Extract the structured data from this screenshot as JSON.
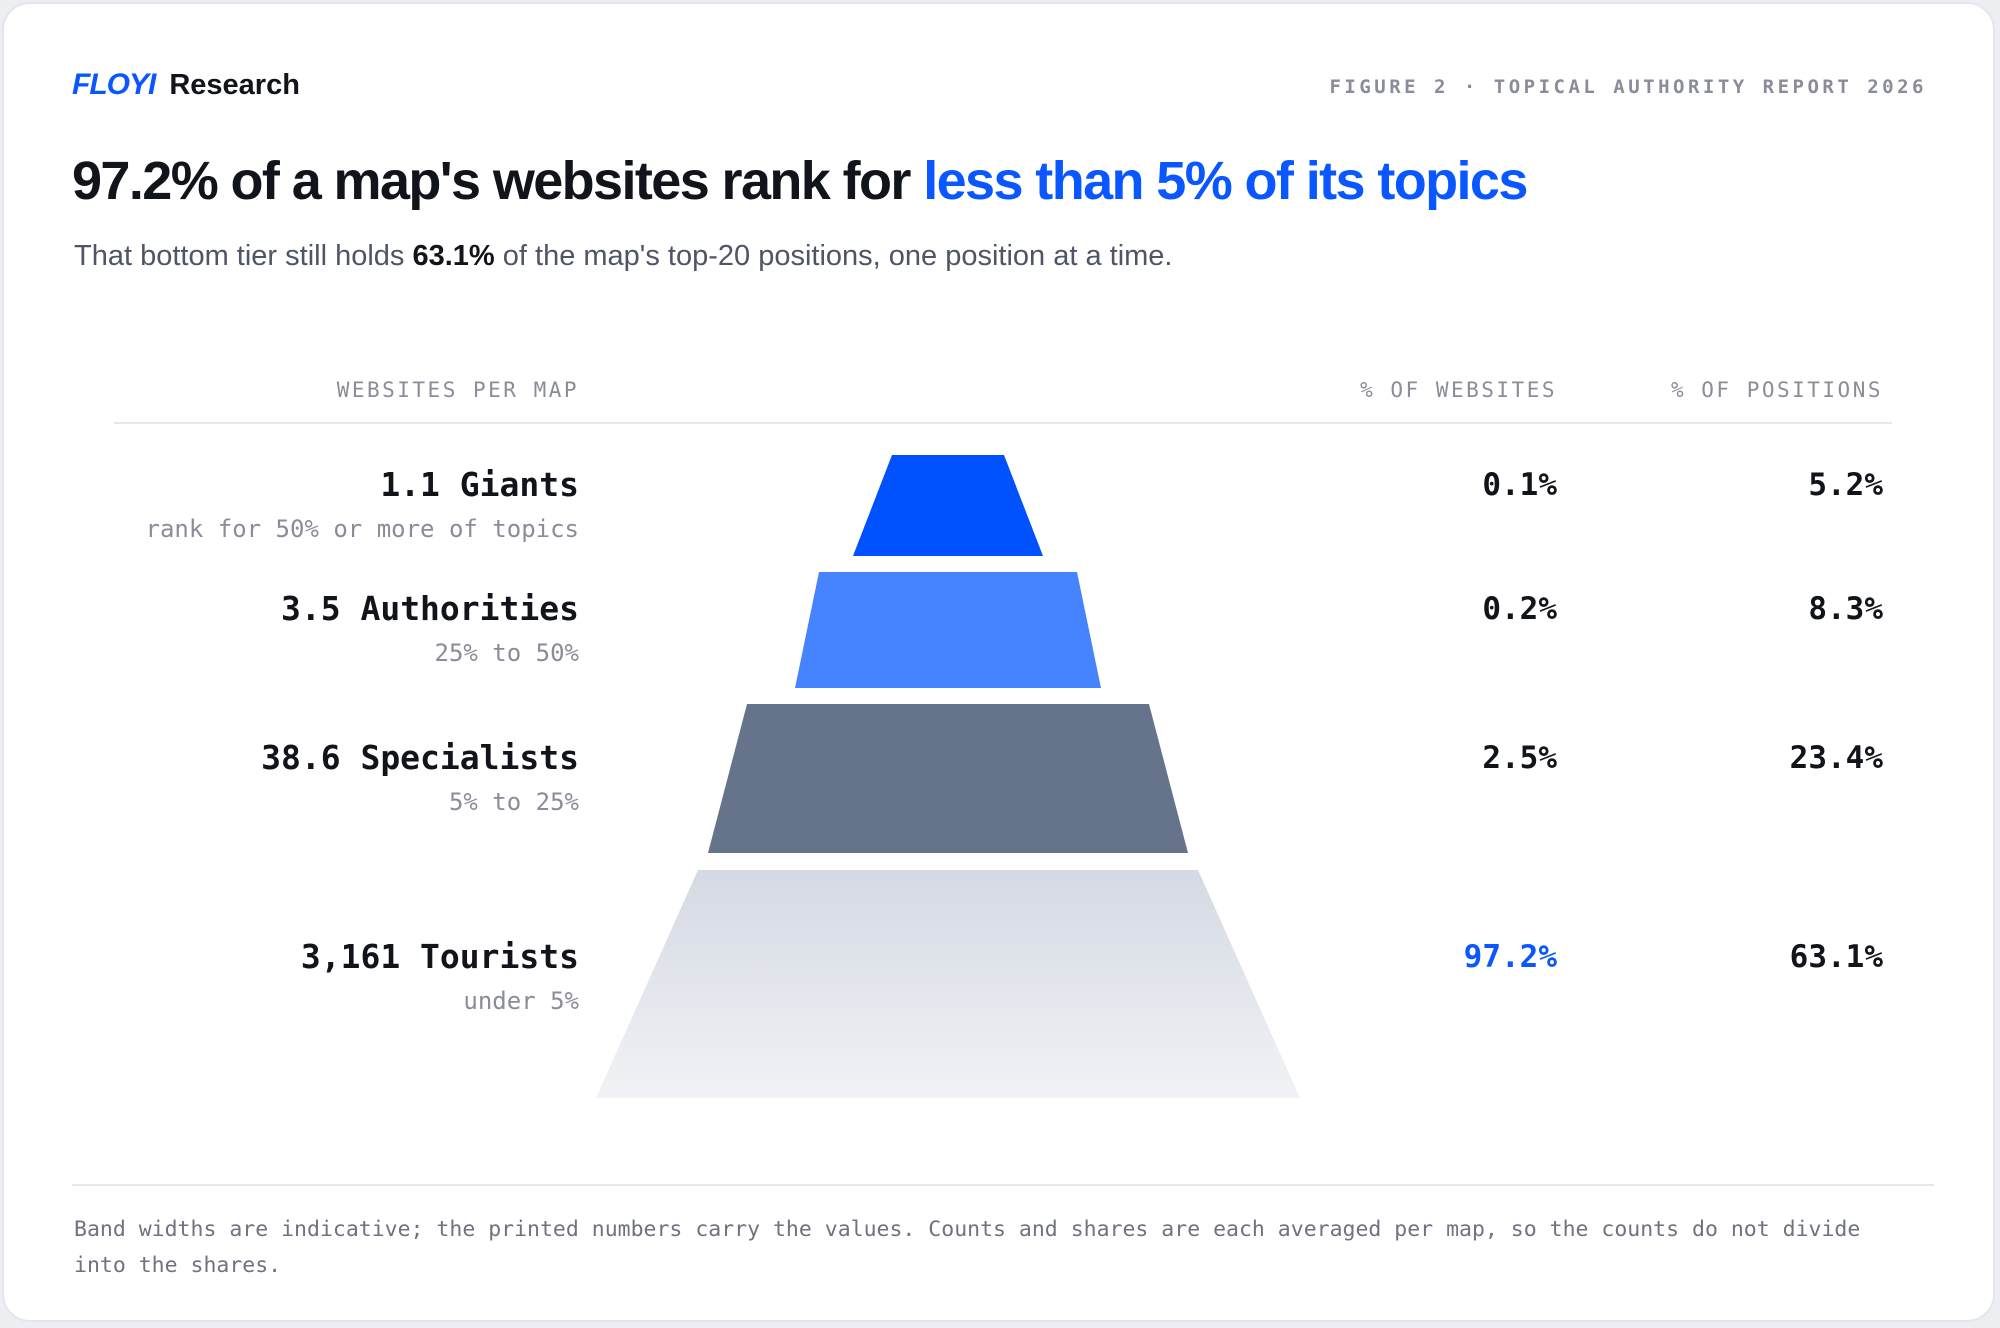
{
  "brand": {
    "logo": "FLOYI",
    "name": "Research"
  },
  "figure_label": "FIGURE 2 · TOPICAL AUTHORITY REPORT 2026",
  "title": {
    "lead": "97.2% of a map's websites rank for",
    "highlight": "less than 5% of its topics"
  },
  "subtitle": {
    "pre": "That bottom tier still holds",
    "bold": "63.1%",
    "post": "of the map's top-20 positions, one position at a time."
  },
  "colors": {
    "accent": "#0a57ff",
    "giants": "#0052ff",
    "authorities": "#4683ff",
    "specialists": "#65748a",
    "tourists_top": "#d5d9e3",
    "tourists_bottom": "#f0f2f5"
  },
  "chart_data": {
    "type": "table",
    "columns": [
      "WEBSITES PER MAP",
      "% OF WEBSITES",
      "% OF POSITIONS"
    ],
    "rows": [
      {
        "count": 1.1,
        "name": "1.1 Giants",
        "desc": "rank for 50% or more of topics",
        "pct_websites": "0.1%",
        "pct_positions": "5.2%",
        "color": "#0052ff"
      },
      {
        "count": 3.5,
        "name": "3.5 Authorities",
        "desc": "25% to 50%",
        "pct_websites": "0.2%",
        "pct_positions": "8.3%",
        "color": "#4683ff"
      },
      {
        "count": 38.6,
        "name": "38.6 Specialists",
        "desc": "5% to 25%",
        "pct_websites": "2.5%",
        "pct_positions": "23.4%",
        "color": "#65748a"
      },
      {
        "count": 3161,
        "name": "3,161 Tourists",
        "desc": "under 5%",
        "pct_websites": "97.2%",
        "pct_positions": "63.1%",
        "color": "gradient",
        "highlight": true
      }
    ]
  },
  "footnote": "Band widths are indicative; the printed numbers carry the values. Counts and shares are each averaged per map, so the counts do not divide into the shares."
}
